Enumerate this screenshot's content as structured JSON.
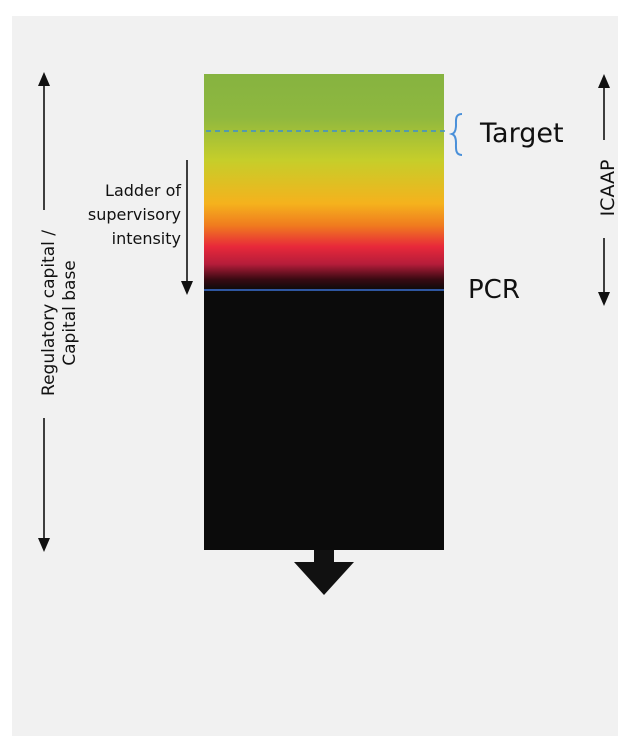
{
  "diagram": {
    "labels": {
      "regulatory_capital_line1": "Regulatory capital /",
      "regulatory_capital_line2": "Capital base",
      "ladder_line1": "Ladder of",
      "ladder_line2": "supervisory",
      "ladder_line3": "intensity",
      "target": "Target",
      "icaap": "ICAAP",
      "pcr": "PCR"
    },
    "colors": {
      "background": "#f1f1f1",
      "target_line": "#3d8fd0",
      "target_brace": "#4a90d9",
      "pcr_line": "#3b6fd1",
      "gradient": [
        "#86b340",
        "#8fb83f",
        "#c6ce2a",
        "#f5b21d",
        "#f07c1e",
        "#e8283a",
        "#b51d3a",
        "#3a0a12",
        "#0b0b0b"
      ],
      "dark_column": "#0b0b0b",
      "arrows": "#111111"
    }
  }
}
